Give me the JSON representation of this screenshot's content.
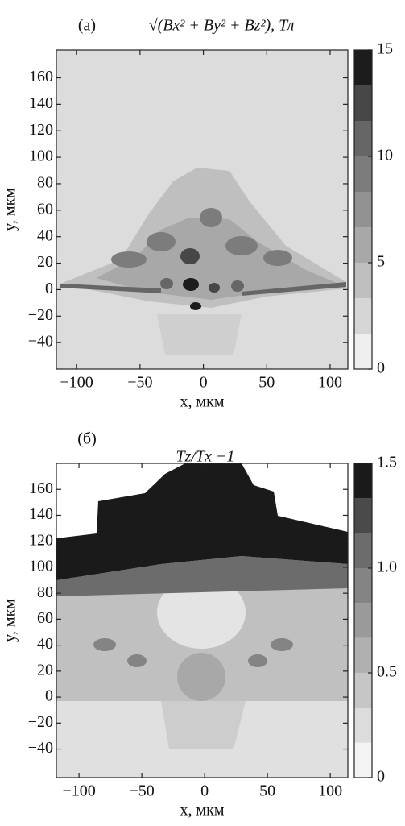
{
  "chart_data": [
    {
      "type": "heatmap",
      "panel": "(a)",
      "title": "√(Bx² + By² + Bz²), Тл",
      "xlabel": "x, мкм",
      "ylabel": "y, мкм",
      "xlim": [
        -116,
        114
      ],
      "ylim": [
        -60,
        181
      ],
      "xticks": [
        {
          "value": -100,
          "label": "−100"
        },
        {
          "value": -50,
          "label": "−50"
        },
        0,
        50,
        100
      ],
      "yticks": [
        {
          "value": -40,
          "label": "−40"
        },
        {
          "value": -20,
          "label": "−20"
        },
        0,
        20,
        40,
        60,
        80,
        100,
        120,
        140,
        160
      ],
      "clim": [
        0,
        15
      ],
      "cticks": [
        0,
        5,
        10,
        15
      ],
      "colors": [
        "#efefef",
        "#d6d6d6",
        "#bfbfbf",
        "#a8a8a8",
        "#929292",
        "#7c7c7c",
        "#666666",
        "#474747",
        "#1c1c1c"
      ]
    },
    {
      "type": "heatmap",
      "panel": "(б)",
      "title": "Tz/Tx −1",
      "xlabel": "x, мкм",
      "ylabel": "y, мкм",
      "xlim": [
        -118,
        114
      ],
      "ylim": [
        -62,
        180
      ],
      "xticks": [
        {
          "value": -100,
          "label": "−100"
        },
        {
          "value": -50,
          "label": "−50"
        },
        0,
        50,
        100
      ],
      "yticks": [
        {
          "value": -40,
          "label": "−40"
        },
        {
          "value": -20,
          "label": "−20"
        },
        0,
        20,
        40,
        60,
        80,
        100,
        120,
        140,
        160
      ],
      "clim": [
        0,
        1.5
      ],
      "cticks": [
        0,
        0.5,
        {
          "value": 1,
          "label": "1.0"
        },
        1.5
      ],
      "colors": [
        "#f4f4f4",
        "#dcdcdc",
        "#c6c6c6",
        "#b0b0b0",
        "#9a9a9a",
        "#848484",
        "#6c6c6c",
        "#4a4a4a",
        "#1a1a1a"
      ]
    }
  ]
}
